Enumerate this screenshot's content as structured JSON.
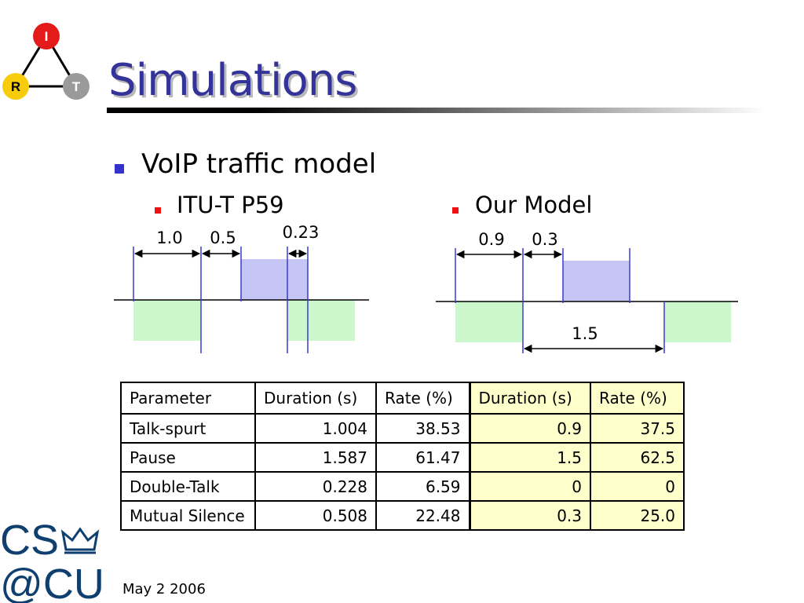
{
  "slide": {
    "title": "Simulations",
    "bullet_main": "VoIP traffic model",
    "sub_left": "ITU-T P59",
    "sub_right": "Our Model",
    "date": "May 2 2006"
  },
  "logo_irt": {
    "letters": [
      "I",
      "R",
      "T"
    ],
    "colors": {
      "I": "#e31b1b",
      "R": "#f6cc0c",
      "T": "#9a9a9a"
    }
  },
  "logo_cscu": {
    "text": "CS@CU",
    "color": "#0f3f6e"
  },
  "diagram_left": {
    "labels": [
      "1.0",
      "0.5",
      "0.23"
    ]
  },
  "diagram_right": {
    "labels": [
      "0.9",
      "0.3",
      "1.5"
    ]
  },
  "colors": {
    "talk_fill": "#c6c6f6",
    "silence_fill": "#ccf6cc",
    "line": "#3a3ad0",
    "title": "#333399"
  },
  "table": {
    "headers": [
      "Parameter",
      "Duration (s)",
      "Rate (%)",
      "Duration (s)",
      "Rate (%)"
    ],
    "rows": [
      [
        "Talk-spurt",
        "1.004",
        "38.53",
        "0.9",
        "37.5"
      ],
      [
        "Pause",
        "1.587",
        "61.47",
        "1.5",
        "62.5"
      ],
      [
        "Double-Talk",
        "0.228",
        "6.59",
        "0",
        "0"
      ],
      [
        "Mutual Silence",
        "0.508",
        "22.48",
        "0.3",
        "25.0"
      ]
    ]
  }
}
